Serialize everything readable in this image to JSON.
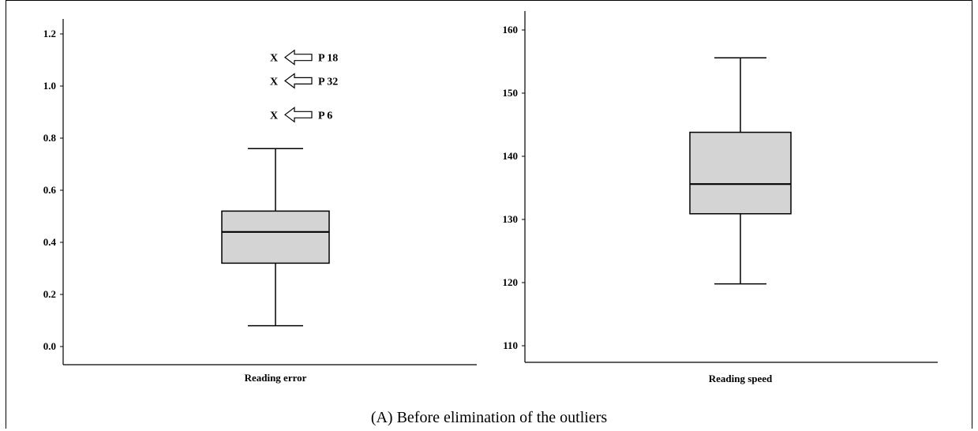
{
  "figure_caption": "(A)  Before elimination of the outliers",
  "chart_data": [
    {
      "type": "box",
      "category": "Reading error",
      "ylim": [
        0.0,
        1.2
      ],
      "yticks": [
        "0.0",
        "0.2",
        "0.4",
        "0.6",
        "0.8",
        "1.0",
        "1.2"
      ],
      "ytick_values": [
        0.0,
        0.2,
        0.4,
        0.6,
        0.8,
        1.0,
        1.2
      ],
      "box": {
        "min": 0.08,
        "q1": 0.32,
        "median": 0.44,
        "q3": 0.52,
        "max": 0.76
      },
      "outliers": [
        {
          "value": 1.11,
          "marker": "X",
          "label": "P 18"
        },
        {
          "value": 1.02,
          "marker": "X",
          "label": "P 32"
        },
        {
          "value": 0.89,
          "marker": "X",
          "label": "P 6"
        }
      ],
      "fill": "#d4d4d4"
    },
    {
      "type": "box",
      "category": "Reading speed",
      "ylim": [
        108,
        161
      ],
      "yticks": [
        "110",
        "120",
        "130",
        "140",
        "150",
        "160"
      ],
      "ytick_values": [
        110,
        120,
        130,
        140,
        150,
        160
      ],
      "box": {
        "min": 119.8,
        "q1": 130.9,
        "median": 135.6,
        "q3": 143.8,
        "max": 155.6
      },
      "outliers": [],
      "fill": "#d4d4d4"
    }
  ]
}
